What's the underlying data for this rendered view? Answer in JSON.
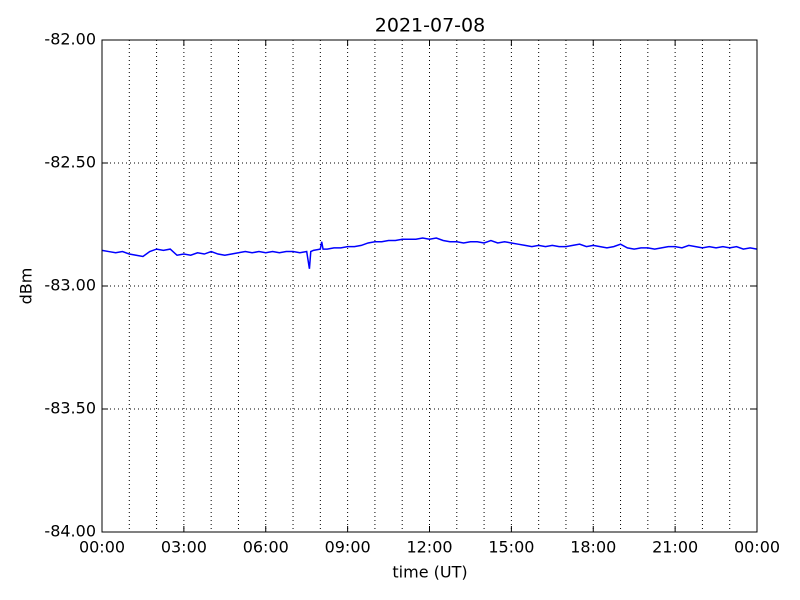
{
  "chart_data": {
    "type": "line",
    "title": "2021-07-08",
    "x_label": "time (UT)",
    "y_label": "dBm",
    "xlim": [
      0,
      24
    ],
    "xticks": [
      {
        "value": 0,
        "label": "00:00"
      },
      {
        "value": 3,
        "label": "03:00"
      },
      {
        "value": 6,
        "label": "06:00"
      },
      {
        "value": 9,
        "label": "09:00"
      },
      {
        "value": 12,
        "label": "12:00"
      },
      {
        "value": 15,
        "label": "15:00"
      },
      {
        "value": 18,
        "label": "18:00"
      },
      {
        "value": 21,
        "label": "21:00"
      },
      {
        "value": 24,
        "label": "00:00"
      }
    ],
    "x_minor_ticks": [
      1,
      2,
      4,
      5,
      7,
      8,
      10,
      11,
      13,
      14,
      16,
      17,
      19,
      20,
      22,
      23
    ],
    "ylim": [
      -84,
      -82
    ],
    "yticks": [
      {
        "value": -84,
        "label": "-84.00"
      },
      {
        "value": -83.5,
        "label": "-83.50"
      },
      {
        "value": -83,
        "label": "-83.00"
      },
      {
        "value": -82.5,
        "label": "-82.50"
      },
      {
        "value": -82,
        "label": "-82.00"
      }
    ],
    "grid": true,
    "x": [
      0,
      0.25,
      0.5,
      0.75,
      1,
      1.25,
      1.5,
      1.75,
      2,
      2.25,
      2.5,
      2.75,
      3,
      3.25,
      3.5,
      3.75,
      4,
      4.25,
      4.5,
      4.75,
      5,
      5.25,
      5.5,
      5.75,
      6,
      6.25,
      6.5,
      6.75,
      7,
      7.25,
      7.5,
      7.6,
      7.65,
      7.75,
      8,
      8.05,
      8.1,
      8.25,
      8.5,
      8.75,
      9,
      9.25,
      9.5,
      9.75,
      10,
      10.25,
      10.5,
      10.75,
      11,
      11.25,
      11.5,
      11.75,
      12,
      12.25,
      12.5,
      12.75,
      13,
      13.25,
      13.5,
      13.75,
      14,
      14.25,
      14.5,
      14.75,
      15,
      15.25,
      15.5,
      15.75,
      16,
      16.25,
      16.5,
      16.75,
      17,
      17.25,
      17.5,
      17.75,
      18,
      18.25,
      18.5,
      18.75,
      19,
      19.25,
      19.5,
      19.75,
      20,
      20.25,
      20.5,
      20.75,
      21,
      21.25,
      21.5,
      21.75,
      22,
      22.25,
      22.5,
      22.75,
      23,
      23.25,
      23.5,
      23.75,
      24
    ],
    "series": [
      {
        "name": "dBm",
        "color": "#0000ff",
        "values": [
          -82.855,
          -82.86,
          -82.865,
          -82.86,
          -82.87,
          -82.875,
          -82.88,
          -82.86,
          -82.85,
          -82.855,
          -82.85,
          -82.875,
          -82.87,
          -82.875,
          -82.865,
          -82.87,
          -82.86,
          -82.87,
          -82.875,
          -82.87,
          -82.865,
          -82.86,
          -82.865,
          -82.86,
          -82.865,
          -82.86,
          -82.865,
          -82.86,
          -82.86,
          -82.865,
          -82.86,
          -82.93,
          -82.86,
          -82.855,
          -82.85,
          -82.82,
          -82.85,
          -82.85,
          -82.845,
          -82.845,
          -82.84,
          -82.84,
          -82.835,
          -82.825,
          -82.82,
          -82.82,
          -82.815,
          -82.815,
          -82.81,
          -82.81,
          -82.81,
          -82.805,
          -82.81,
          -82.805,
          -82.815,
          -82.82,
          -82.82,
          -82.825,
          -82.82,
          -82.82,
          -82.825,
          -82.815,
          -82.825,
          -82.82,
          -82.825,
          -82.83,
          -82.835,
          -82.84,
          -82.835,
          -82.84,
          -82.835,
          -82.84,
          -82.84,
          -82.835,
          -82.83,
          -82.84,
          -82.835,
          -82.84,
          -82.845,
          -82.84,
          -82.83,
          -82.845,
          -82.85,
          -82.845,
          -82.845,
          -82.85,
          -82.845,
          -82.84,
          -82.84,
          -82.845,
          -82.835,
          -82.84,
          -82.845,
          -82.84,
          -82.845,
          -82.84,
          -82.845,
          -82.84,
          -82.85,
          -82.845,
          -82.85
        ]
      }
    ]
  }
}
